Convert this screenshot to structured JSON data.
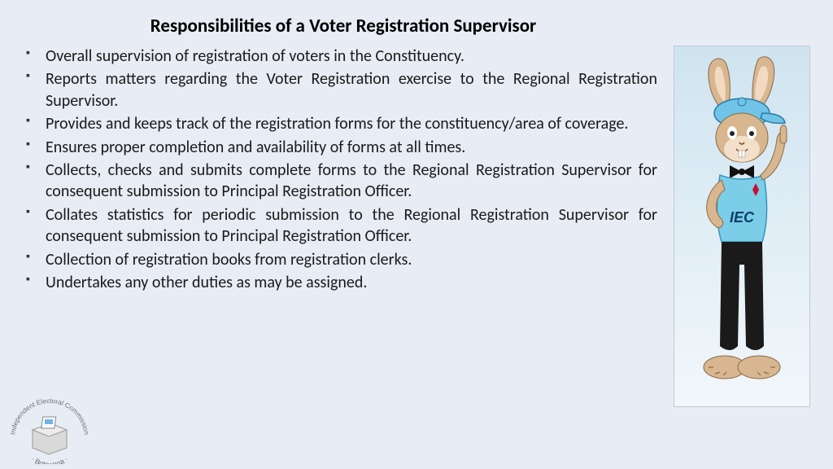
{
  "title": "Responsibilities of a Voter Registration Supervisor",
  "bullets": [
    "Overall supervision of registration of voters in the Constituency.",
    "Reports matters regarding the Voter Registration exercise to the Regional Registration Supervisor.",
    "Provides and keeps track of the registration forms for the constituency/area of coverage.",
    "Ensures proper completion and availability of forms at all times.",
    "Collects, checks and submits complete forms to the Regional Registration Supervisor for consequent submission to Principal Registration Officer.",
    "Collates statistics for periodic submission to the Regional Registration Supervisor for consequent submission to Principal Registration Officer.",
    "Collection of registration books from registration clerks.",
    "Undertakes any other duties as may be assigned."
  ],
  "mascot": {
    "shirt_label": "IEC",
    "ribbon_color": "#c8102e",
    "cap_color": "#6fc4e8",
    "shirt_color": "#7bcde8",
    "body_color": "#d7b690",
    "pants_color": "#1a1a1a",
    "bowtie_color": "#111"
  },
  "logo": {
    "text_top": "Independent Electoral Commission",
    "text_bottom": "· Botswana ·",
    "box_color": "#d9d9d9",
    "flag_blue": "#6fb4e6",
    "text_color": "#6b6f76"
  },
  "colors": {
    "page_bg": "#e8ecf4",
    "panel_top": "#cfe4f0",
    "panel_bottom": "#f2f7fb",
    "text": "#1a1a1a"
  },
  "typography": {
    "title_fontsize": 23,
    "body_fontsize": 20,
    "font_family": "Calibri"
  }
}
